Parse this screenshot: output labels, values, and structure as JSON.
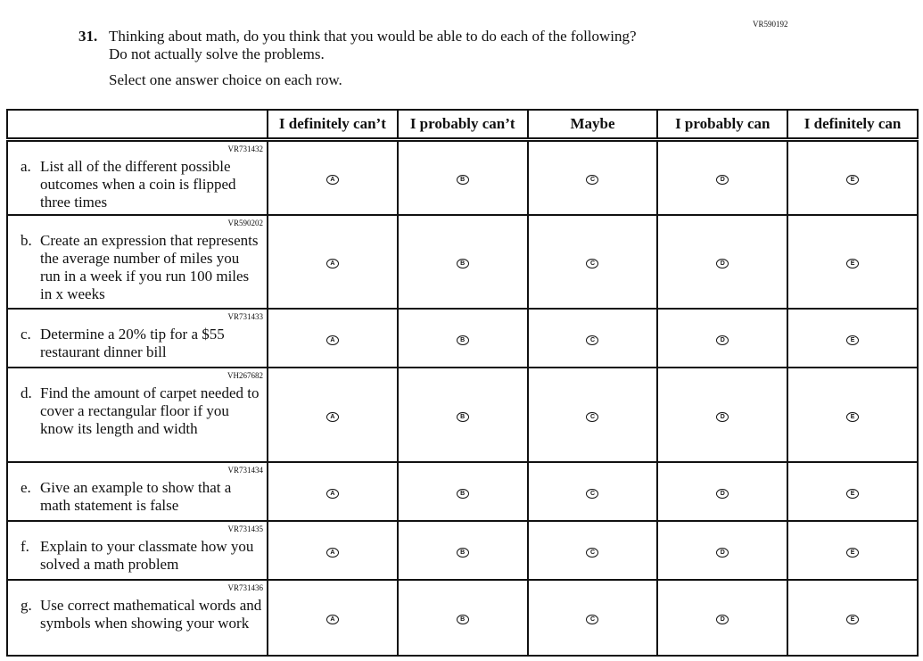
{
  "question": {
    "id_code": "VR590192",
    "number": "31.",
    "text_line1": "Thinking about math, do you think that you would be able to do each of the following?",
    "text_line2": "Do not actually solve the problems.",
    "instruction": "Select one answer choice on each row."
  },
  "columns": [
    "I definitely can’t",
    "I probably can’t",
    "Maybe",
    "I probably can",
    "I definitely can"
  ],
  "options": [
    "A",
    "B",
    "C",
    "D",
    "E"
  ],
  "rows": [
    {
      "code": "VR731432",
      "letter": "a.",
      "text": "List all of the different possible outcomes when a coin is flipped three times"
    },
    {
      "code": "VR590202",
      "letter": "b.",
      "text": "Create an expression that represents the average number of miles you run in a week if you run 100 miles in x weeks"
    },
    {
      "code": "VR731433",
      "letter": "c.",
      "text": "Determine a 20% tip for a $55 restaurant dinner bill"
    },
    {
      "code": "VH267682",
      "letter": "d.",
      "text": "Find the amount of carpet needed to cover a rectangular floor if you know its length and width"
    },
    {
      "code": "VR731434",
      "letter": "e.",
      "text": "Give an example to show that a math statement is false"
    },
    {
      "code": "VR731435",
      "letter": "f.",
      "text": "Explain to your classmate how you solved a math problem"
    },
    {
      "code": "VR731436",
      "letter": "g.",
      "text": "Use correct mathematical words and symbols when showing your work"
    }
  ]
}
